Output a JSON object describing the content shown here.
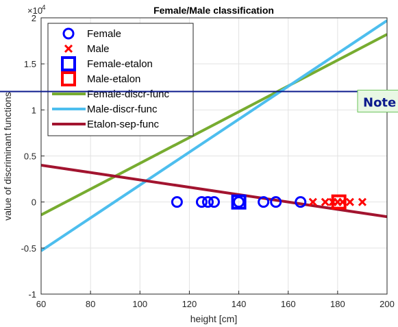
{
  "chart_data": {
    "type": "line",
    "title": "Female/Male classification",
    "xlabel": "height [cm]",
    "ylabel": "value of discriminant functions",
    "y_exponent_label": "×10",
    "y_exponent_power": "4",
    "xlim": [
      60,
      200
    ],
    "ylim": [
      -10000,
      20000
    ],
    "x_ticks": [
      60,
      80,
      100,
      120,
      140,
      160,
      180,
      200
    ],
    "y_ticks": [
      -10000,
      -5000,
      0,
      5000,
      10000,
      15000,
      20000
    ],
    "y_tick_labels": [
      "-1",
      "-0.5",
      "0",
      "0.5",
      "1",
      "1.5",
      "2"
    ],
    "grid": true,
    "legend_position": "top-left",
    "series": [
      {
        "name": "Female",
        "kind": "scatter",
        "marker": "circle",
        "color": "#0000ff",
        "x": [
          115,
          125,
          127.5,
          130,
          140,
          150,
          155,
          165
        ],
        "y": [
          0,
          0,
          0,
          0,
          0,
          0,
          0,
          0
        ]
      },
      {
        "name": "Male",
        "kind": "scatter",
        "marker": "x",
        "color": "#ff0000",
        "x": [
          170,
          175,
          178,
          180,
          182,
          185,
          190
        ],
        "y": [
          0,
          0,
          0,
          0,
          0,
          0,
          0
        ]
      },
      {
        "name": "Female-etalon",
        "kind": "scatter",
        "marker": "square",
        "color": "#0000ff",
        "x": [
          140
        ],
        "y": [
          0
        ]
      },
      {
        "name": "Male-etalon",
        "kind": "scatter",
        "marker": "square",
        "color": "#ff0000",
        "x": [
          180.5
        ],
        "y": [
          0
        ]
      },
      {
        "name": "Female-discr-func",
        "kind": "line",
        "color": "#77ac30",
        "x": [
          60,
          200
        ],
        "y": [
          -1400,
          18200
        ]
      },
      {
        "name": "Male-discr-func",
        "kind": "line",
        "color": "#4dbeee",
        "x": [
          60,
          200
        ],
        "y": [
          -5300,
          19700
        ]
      },
      {
        "name": "Etalon-sep-func",
        "kind": "line",
        "color": "#a2142f",
        "x": [
          60,
          200
        ],
        "y": [
          4000,
          -1600
        ]
      }
    ],
    "reference_line": {
      "y": 12000,
      "color": "#0b1a8c",
      "label": "Note"
    }
  }
}
